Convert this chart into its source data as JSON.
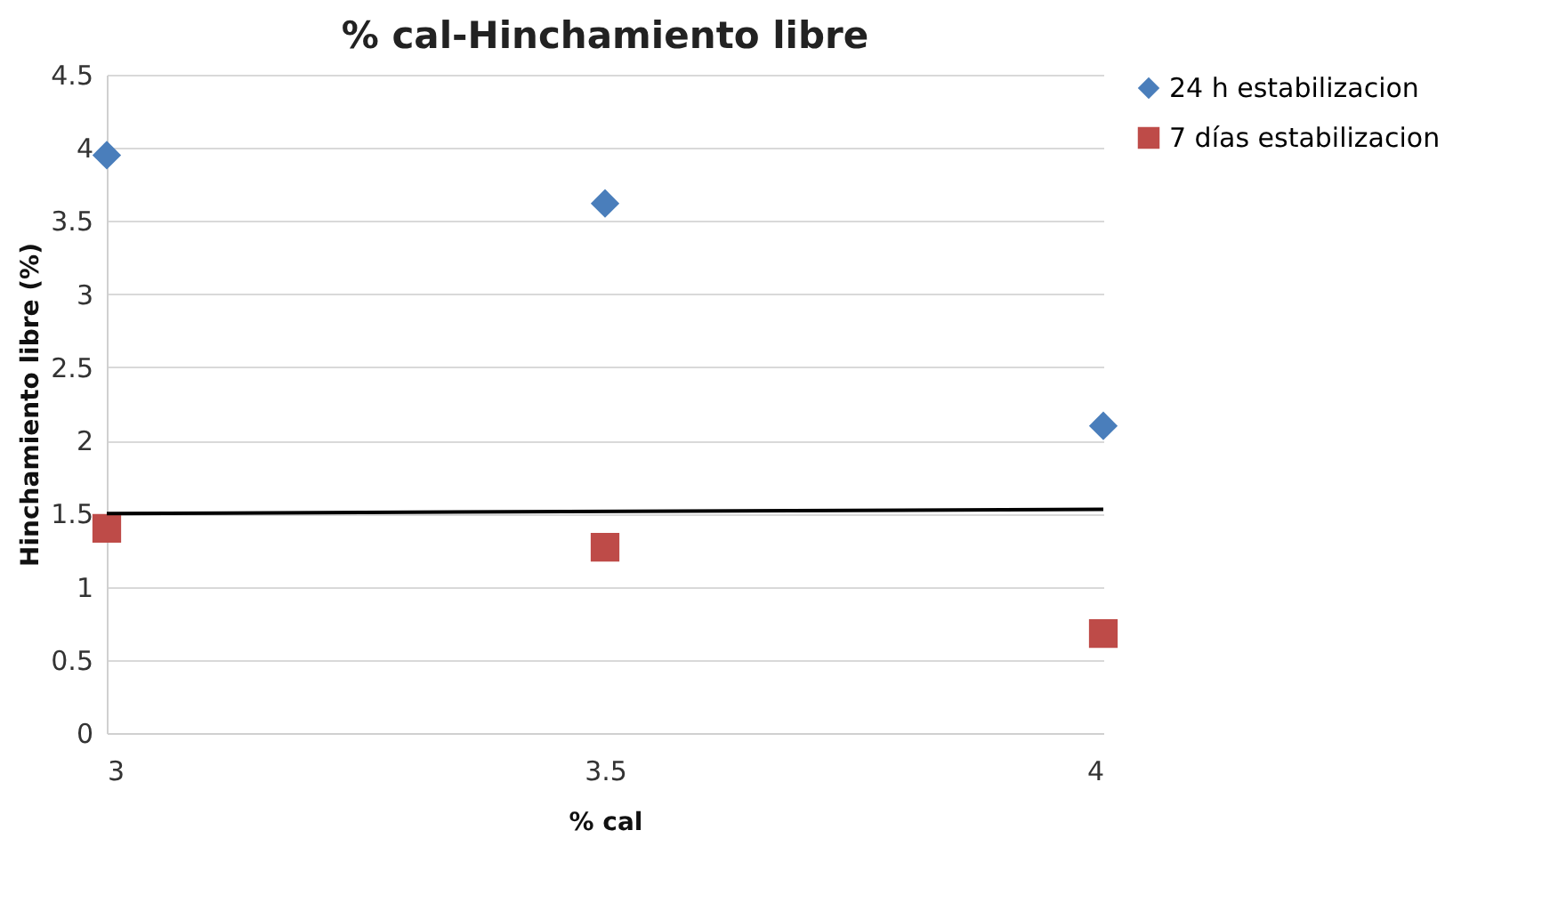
{
  "chart_data": {
    "type": "scatter",
    "title": "% cal-Hinchamiento libre",
    "xlabel": "% cal",
    "ylabel": "Hinchamiento libre (%)",
    "x": [
      3,
      3.5,
      4
    ],
    "series": [
      {
        "name": "24 h estabilizacion",
        "color": "#4a7ebb",
        "marker": "diamond",
        "values": [
          3.95,
          3.62,
          2.1
        ]
      },
      {
        "name": "7 días estabilizacion",
        "color": "#be4b48",
        "marker": "square",
        "values": [
          1.4,
          1.27,
          0.68
        ]
      },
      {
        "type": "line",
        "color": "#000000",
        "marker": "none",
        "line_style": "solid",
        "x": [
          3,
          4
        ],
        "values": [
          1.5,
          1.53
        ]
      }
    ],
    "xlim": [
      3,
      4
    ],
    "xticks": [
      3,
      3.5,
      4
    ],
    "ylim": [
      0,
      4.5
    ],
    "yticks": [
      0,
      0.5,
      1,
      1.5,
      2,
      2.5,
      3,
      3.5,
      4,
      4.5
    ],
    "grid": "y",
    "legend": "right"
  }
}
